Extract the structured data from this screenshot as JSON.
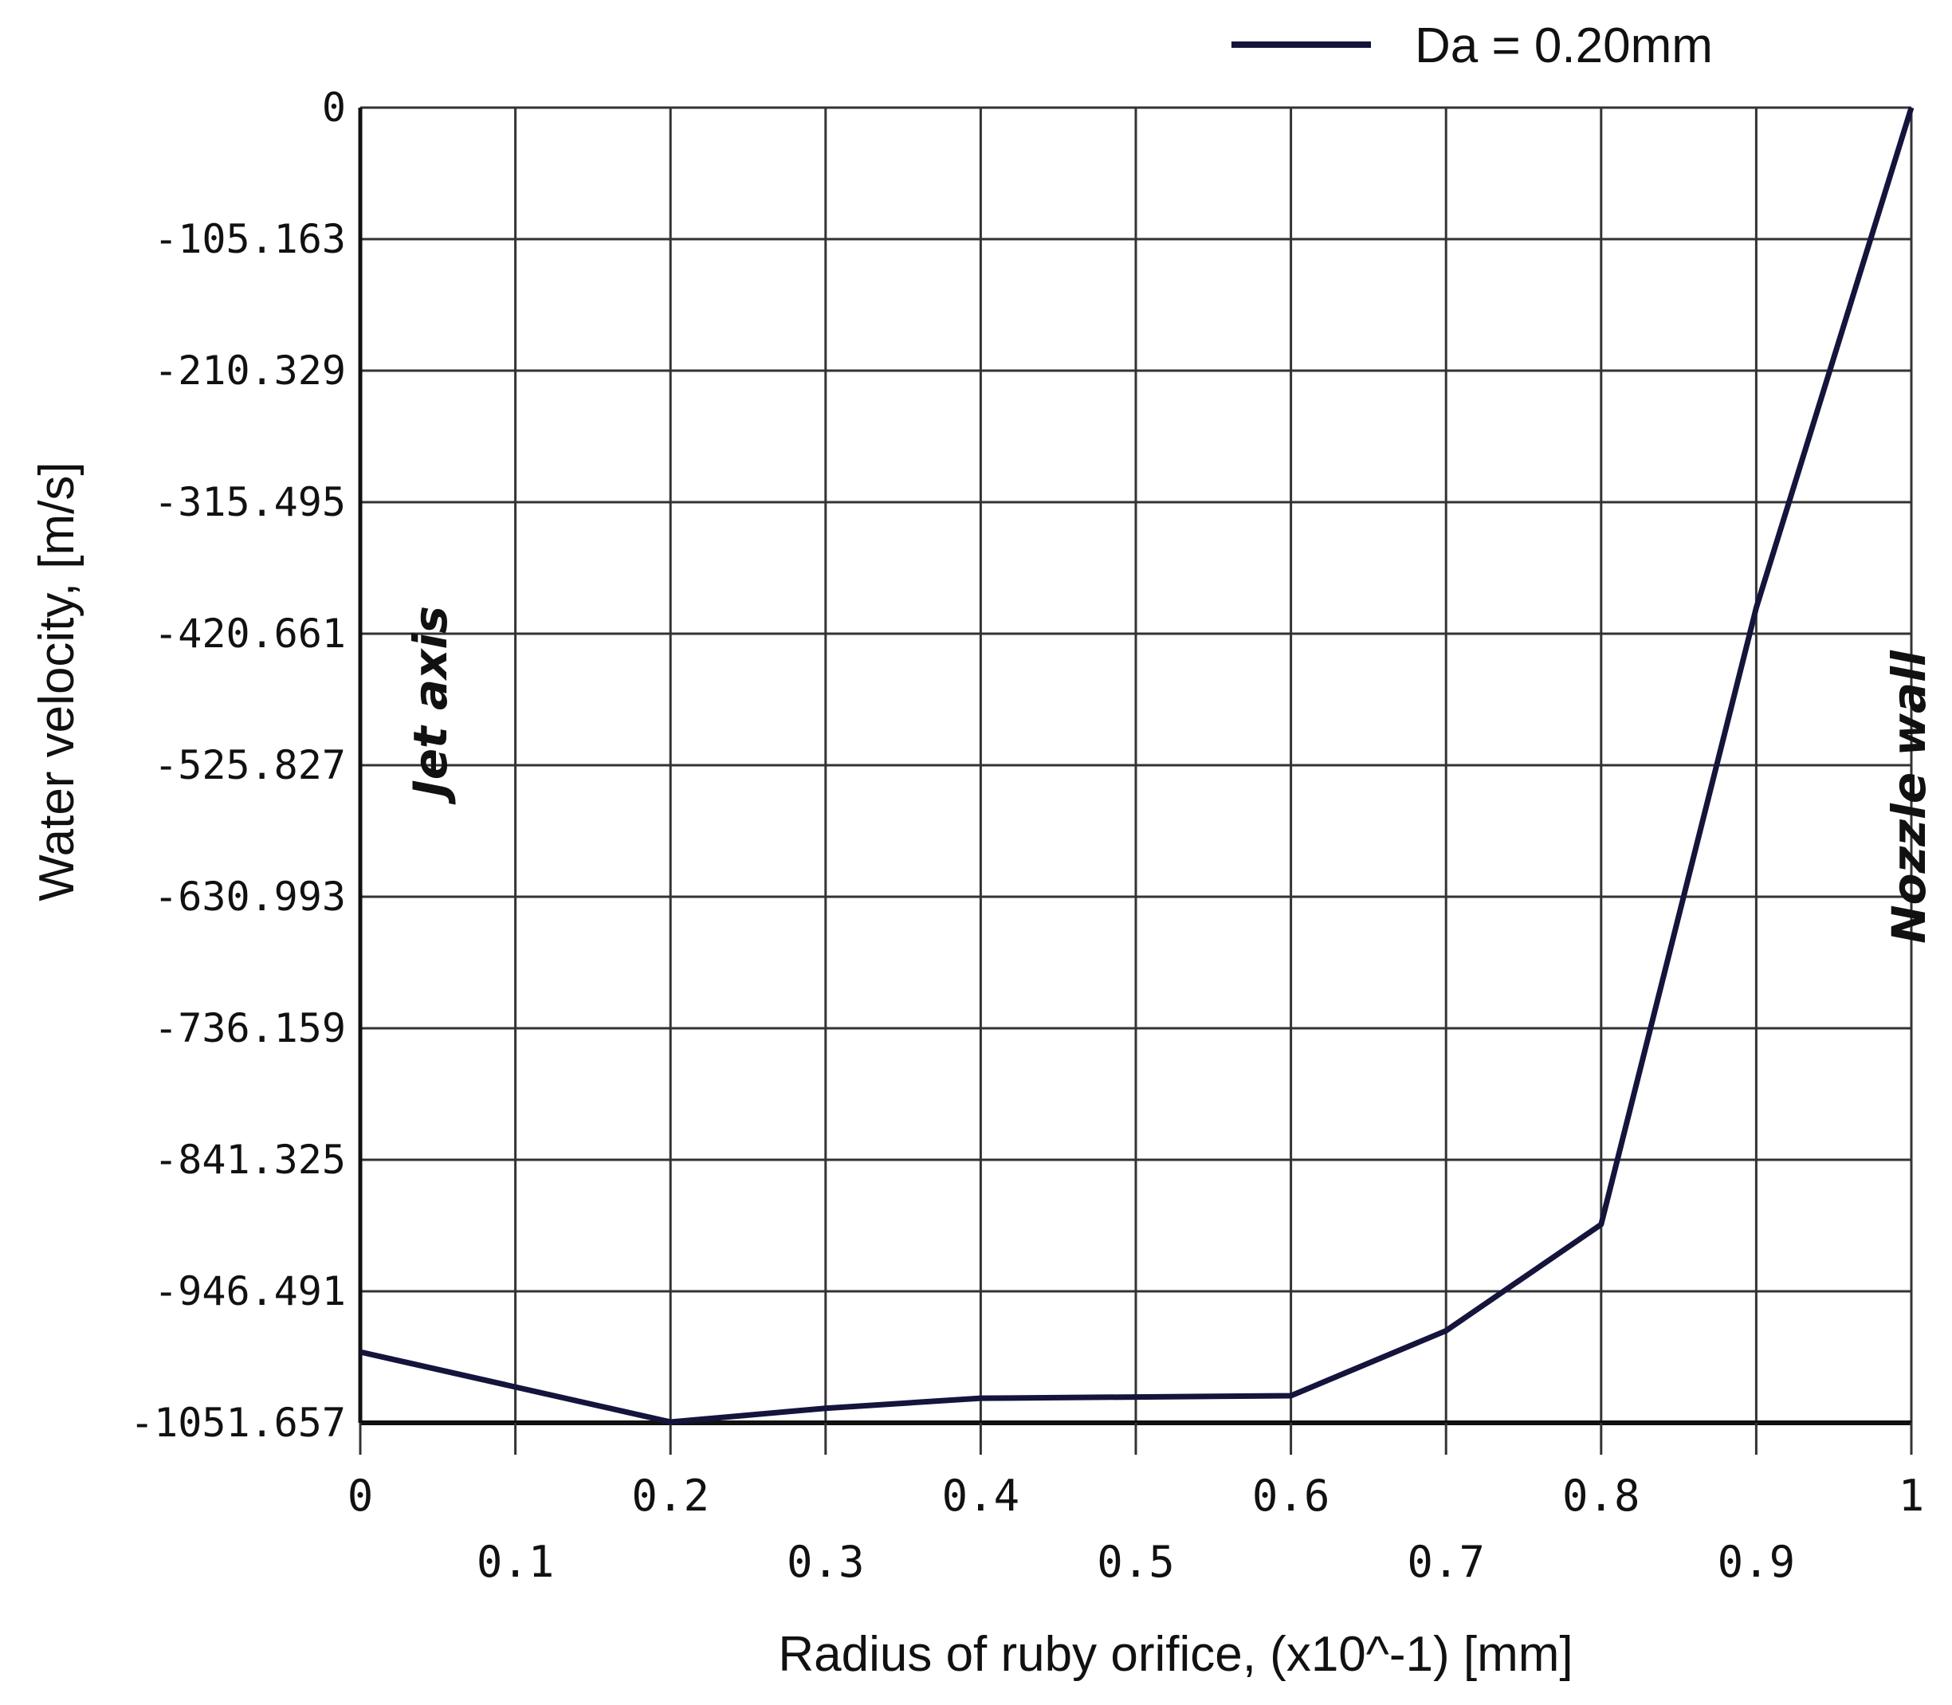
{
  "chart_data": {
    "type": "line",
    "xlabel": "Radius of ruby orifice, (x10^-1) [mm]",
    "ylabel": "Water velocity, [m/s]",
    "xlim": [
      0,
      1
    ],
    "ylim": [
      -1051.657,
      0
    ],
    "x_ticks_row1": [
      "0",
      "0.2",
      "0.4",
      "0.6",
      "0.8",
      "1"
    ],
    "x_ticks_row2": [
      "0.1",
      "0.3",
      "0.5",
      "0.7",
      "0.9"
    ],
    "y_ticks": [
      "0",
      "-105.163",
      "-210.329",
      "-315.495",
      "-420.661",
      "-525.827",
      "-630.993",
      "-736.159",
      "-841.325",
      "-946.491",
      "-1051.657"
    ],
    "grid": true,
    "legend_position": "top-right",
    "annotations": [
      "Jet axis",
      "Nozzle wall"
    ],
    "series": [
      {
        "name": "Da = 0.20mm",
        "color": "#14143c",
        "x": [
          0,
          0.2,
          0.3,
          0.4,
          0.6,
          0.7,
          0.8,
          0.9,
          1.0
        ],
        "y": [
          -995,
          -1051,
          -1040,
          -1032,
          -1030,
          -978,
          -893,
          -400,
          0
        ]
      }
    ]
  }
}
